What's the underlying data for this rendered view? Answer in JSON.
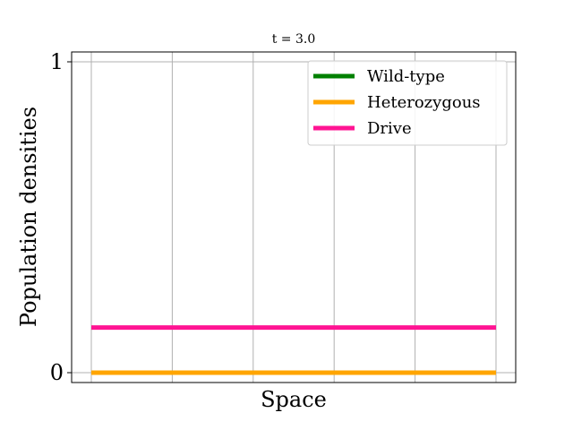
{
  "chart_data": {
    "type": "line",
    "title": "t = 3.0",
    "xlabel": "Space",
    "ylabel": "Population densities",
    "xlim": [
      0,
      100
    ],
    "ylim": [
      -0.03,
      1.03
    ],
    "x_tick_values": [
      0,
      20,
      40,
      60,
      80,
      100
    ],
    "y_ticks": [
      {
        "value": 0,
        "label": "0"
      },
      {
        "value": 1,
        "label": "1"
      }
    ],
    "grid": true,
    "legend_position": "top-right",
    "series": [
      {
        "name": "Wild-type",
        "color": "#008000",
        "x": [
          0,
          100
        ],
        "y": [
          0,
          0
        ]
      },
      {
        "name": "Heterozygous",
        "color": "#FFA500",
        "x": [
          0,
          100
        ],
        "y": [
          0,
          0
        ]
      },
      {
        "name": "Drive",
        "color": "#FF1493",
        "x": [
          0,
          100
        ],
        "y": [
          0.145,
          0.145
        ]
      }
    ]
  }
}
